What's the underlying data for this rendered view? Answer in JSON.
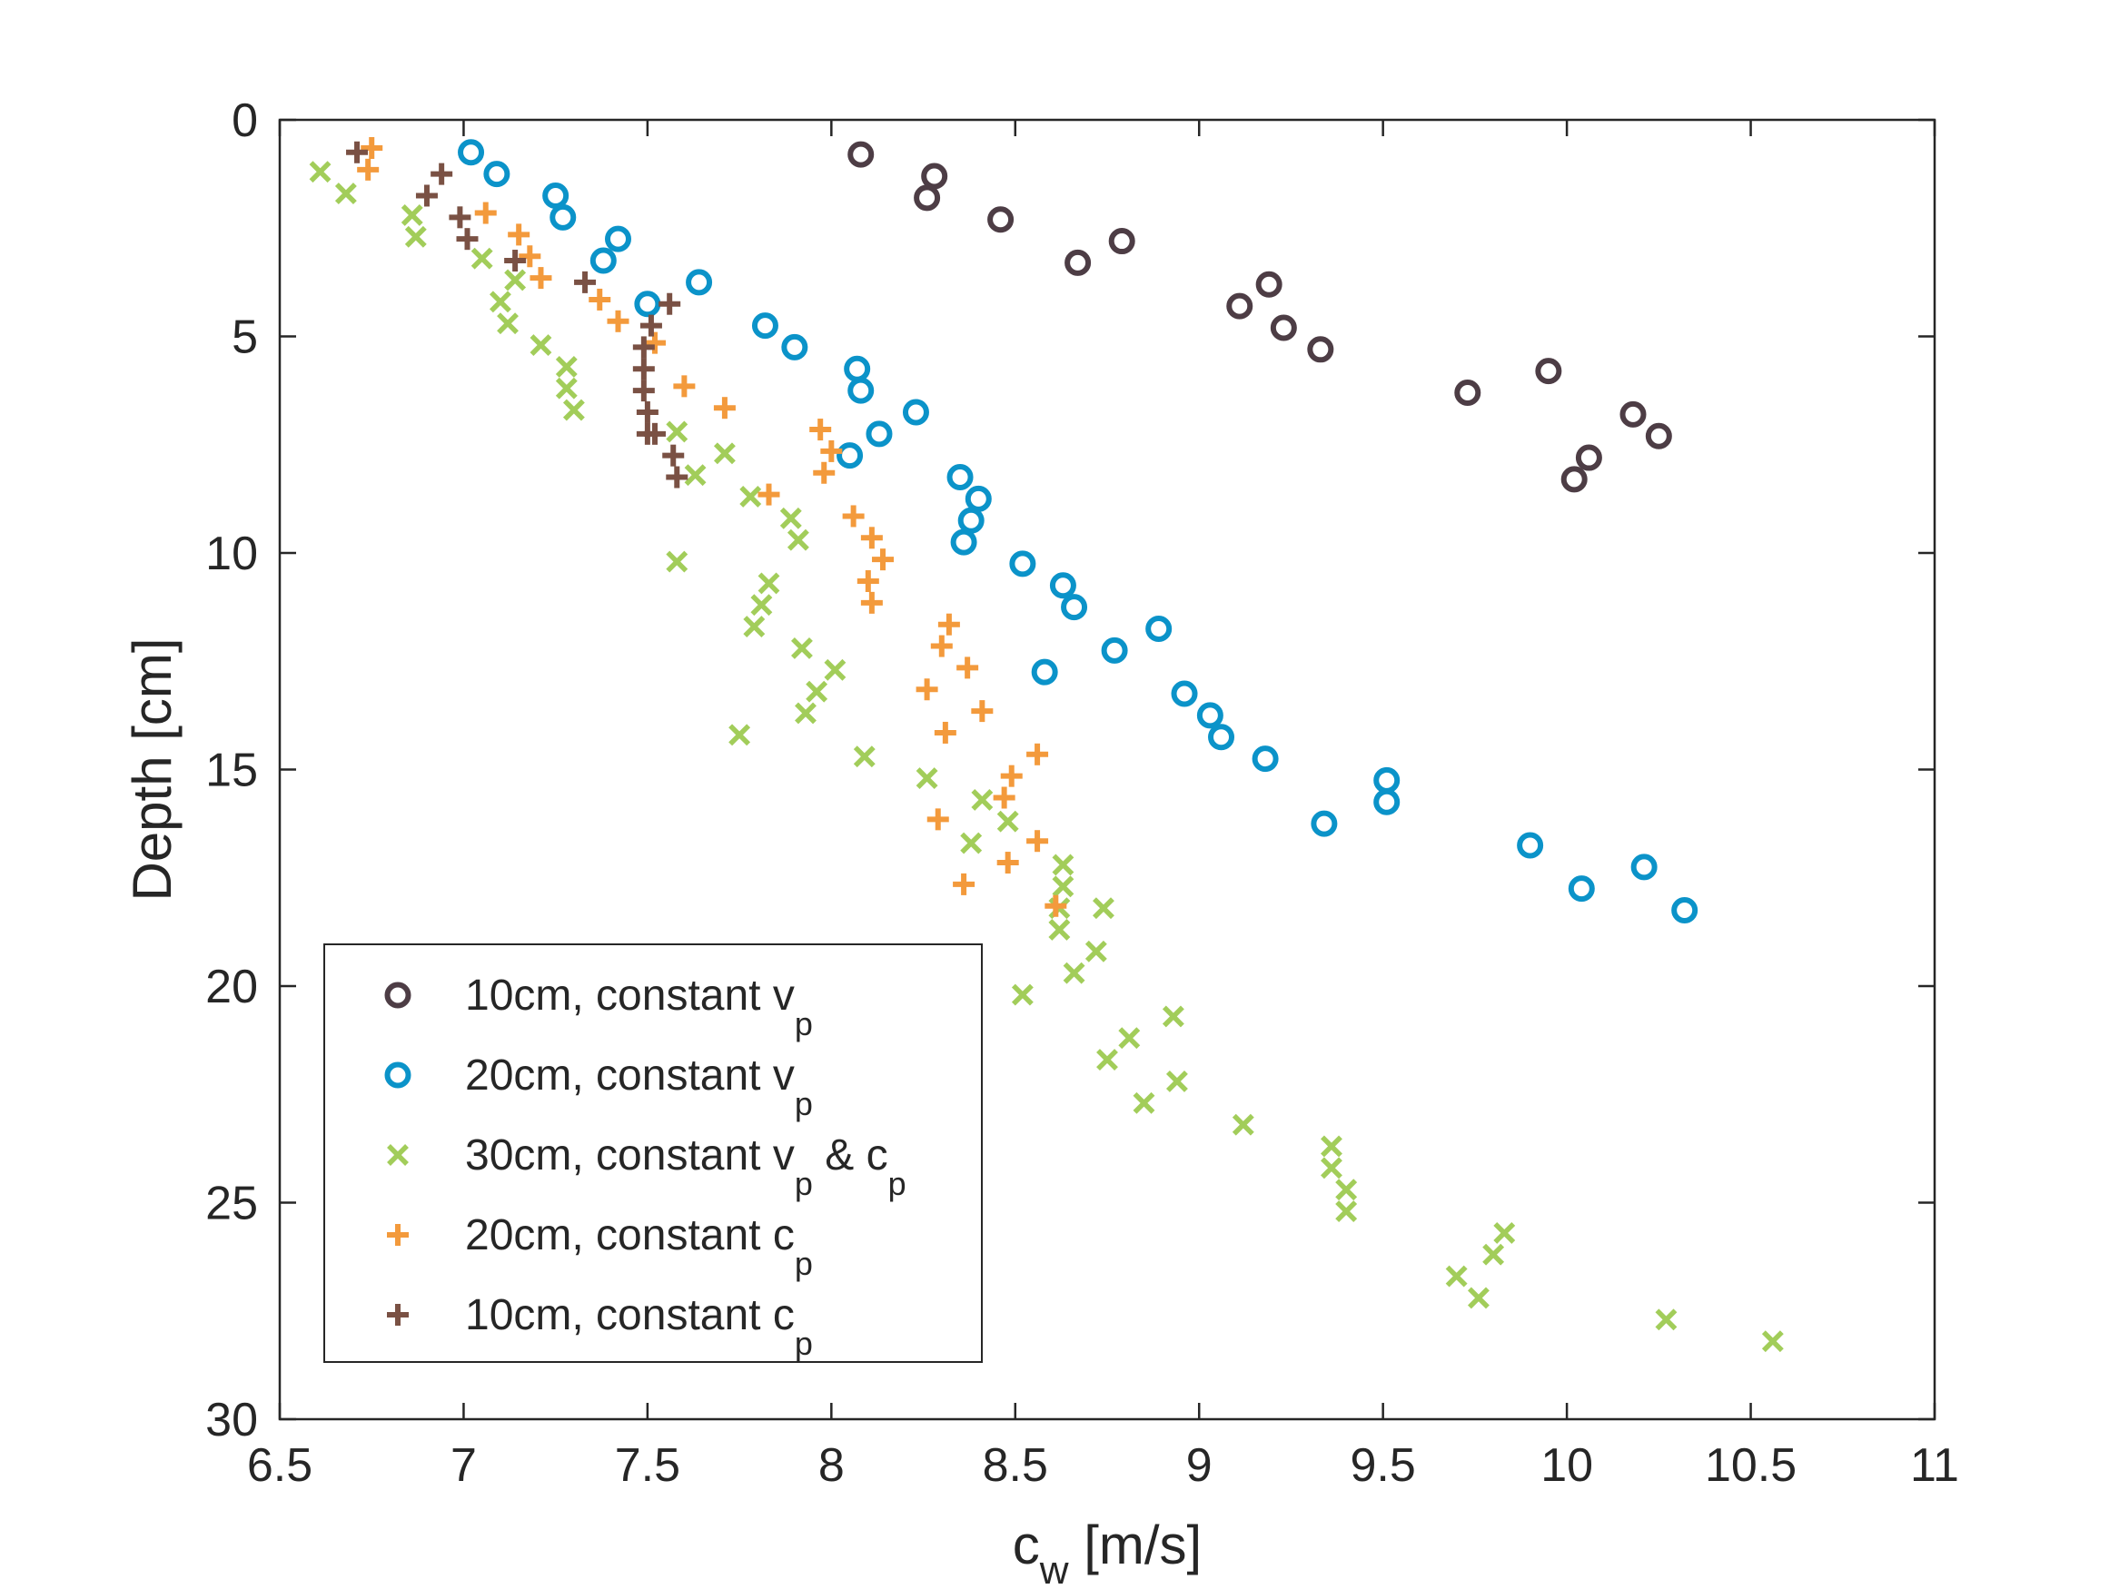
{
  "chart_data": {
    "type": "scatter",
    "title": "",
    "xlabel": "c",
    "xlabel_sub": "w",
    "xlabel_unit": " [m/s]",
    "ylabel": "Depth [cm]",
    "xlim": [
      6.5,
      11
    ],
    "ylim": [
      0,
      30
    ],
    "y_reversed": true,
    "grid": true,
    "legend_position": "bottom-left",
    "x_ticks": [
      6.5,
      7,
      7.5,
      8,
      8.5,
      9,
      9.5,
      10,
      10.5,
      11
    ],
    "x_tick_labels": [
      "6.5",
      "7",
      "7.5",
      "8",
      "8.5",
      "9",
      "9.5",
      "10",
      "10.5",
      "11"
    ],
    "y_ticks": [
      0,
      5,
      10,
      15,
      20,
      25,
      30
    ],
    "y_tick_labels": [
      "0",
      "5",
      "10",
      "15",
      "20",
      "25",
      "30"
    ],
    "series": [
      {
        "name": "10cm, constant v_p",
        "legend_parts": [
          [
            "10cm, constant v",
            ""
          ],
          [
            "p",
            "sub"
          ]
        ],
        "marker": "circle",
        "color": "#4d3d45",
        "x": [
          8.08,
          8.28,
          8.26,
          8.46,
          8.79,
          8.67,
          9.19,
          9.11,
          9.23,
          9.33,
          9.95,
          9.73,
          10.18,
          10.25,
          10.06,
          10.02
        ],
        "y": [
          0.8,
          1.3,
          1.8,
          2.3,
          2.8,
          3.3,
          3.8,
          4.3,
          4.8,
          5.3,
          5.8,
          6.3,
          6.8,
          7.3,
          7.8,
          8.3
        ]
      },
      {
        "name": "20cm, constant v_p",
        "legend_parts": [
          [
            "20cm, constant v",
            ""
          ],
          [
            "p",
            "sub"
          ]
        ],
        "marker": "circle",
        "color": "#0b93c9",
        "x": [
          7.02,
          7.09,
          7.25,
          7.27,
          7.42,
          7.38,
          7.64,
          7.5,
          7.82,
          7.9,
          8.07,
          8.08,
          8.23,
          8.13,
          8.05,
          8.35,
          8.4,
          8.38,
          8.36,
          8.52,
          8.63,
          8.66,
          8.89,
          8.77,
          8.58,
          8.96,
          9.03,
          9.06,
          9.18,
          9.51,
          9.51,
          9.34,
          9.9,
          10.21,
          10.04,
          10.32
        ],
        "y": [
          0.75,
          1.25,
          1.75,
          2.25,
          2.75,
          3.25,
          3.75,
          4.25,
          4.75,
          5.25,
          5.75,
          6.25,
          6.75,
          7.25,
          7.75,
          8.25,
          8.75,
          9.25,
          9.75,
          10.25,
          10.75,
          11.25,
          11.75,
          12.25,
          12.75,
          13.25,
          13.75,
          14.25,
          14.75,
          15.25,
          15.75,
          16.25,
          16.75,
          17.25,
          17.75,
          18.25
        ]
      },
      {
        "name": "30cm, constant v_p & c_p",
        "legend_parts": [
          [
            "30cm, constant v",
            ""
          ],
          [
            "p",
            "sub"
          ],
          [
            " & c",
            ""
          ],
          [
            "p",
            "sub"
          ]
        ],
        "marker": "x",
        "color": "#a2cd5a",
        "x": [
          6.61,
          6.68,
          6.86,
          6.87,
          7.05,
          7.14,
          7.1,
          7.12,
          7.21,
          7.28,
          7.28,
          7.3,
          7.58,
          7.71,
          7.63,
          7.78,
          7.89,
          7.91,
          7.58,
          7.83,
          7.81,
          7.79,
          7.92,
          8.01,
          7.96,
          7.93,
          7.75,
          8.09,
          8.26,
          8.41,
          8.48,
          8.38,
          8.63,
          8.63,
          8.62,
          8.62,
          8.74,
          8.72,
          8.66,
          8.52,
          8.93,
          8.81,
          8.75,
          8.94,
          8.85,
          9.12,
          9.36,
          9.36,
          9.4,
          9.4,
          9.83,
          9.8,
          9.7,
          9.76,
          10.27,
          10.56
        ],
        "y": [
          1.2,
          1.7,
          2.2,
          2.7,
          3.2,
          3.7,
          4.2,
          4.7,
          5.2,
          5.7,
          6.2,
          6.7,
          7.2,
          7.7,
          8.2,
          8.7,
          9.2,
          9.7,
          10.2,
          10.7,
          11.2,
          11.7,
          12.2,
          12.7,
          13.2,
          13.7,
          14.2,
          14.7,
          15.2,
          15.7,
          16.2,
          16.7,
          17.2,
          17.7,
          18.2,
          18.7,
          18.2,
          19.2,
          19.7,
          20.2,
          20.7,
          21.2,
          21.7,
          22.2,
          22.7,
          23.2,
          23.7,
          24.2,
          24.7,
          25.2,
          25.7,
          26.2,
          26.7,
          27.2,
          27.7,
          28.2
        ]
      },
      {
        "name": "20cm, constant c_p",
        "legend_parts": [
          [
            "20cm, constant c",
            ""
          ],
          [
            "p",
            "sub"
          ]
        ],
        "marker": "plus",
        "color": "#f39a3c",
        "x": [
          6.75,
          6.74,
          7.06,
          7.15,
          7.18,
          7.21,
          7.37,
          7.42,
          7.52,
          7.6,
          7.71,
          7.97,
          8.0,
          7.98,
          7.83,
          8.06,
          8.11,
          8.14,
          8.1,
          8.11,
          8.32,
          8.3,
          8.37,
          8.26,
          8.41,
          8.31,
          8.56,
          8.49,
          8.47,
          8.29,
          8.56,
          8.48,
          8.36,
          8.61
        ],
        "y": [
          0.65,
          1.15,
          2.15,
          2.65,
          3.15,
          3.65,
          4.15,
          4.65,
          5.15,
          6.15,
          6.65,
          7.15,
          7.65,
          8.15,
          8.65,
          9.15,
          9.65,
          10.15,
          10.65,
          11.15,
          11.65,
          12.15,
          12.65,
          13.15,
          13.65,
          14.15,
          14.65,
          15.15,
          15.65,
          16.15,
          16.65,
          17.15,
          17.65,
          18.15
        ]
      },
      {
        "name": "10cm, constant c_p",
        "legend_parts": [
          [
            "10cm, constant c",
            ""
          ],
          [
            "p",
            "sub"
          ]
        ],
        "marker": "plus",
        "color": "#7a5144",
        "x": [
          6.71,
          6.94,
          6.9,
          6.99,
          7.01,
          7.14,
          7.33,
          7.56,
          7.51,
          7.49,
          7.49,
          7.49,
          7.5,
          7.5,
          7.52,
          7.57,
          7.58
        ],
        "y": [
          0.75,
          1.25,
          1.75,
          2.25,
          2.75,
          3.25,
          3.75,
          4.25,
          4.75,
          5.25,
          5.75,
          6.25,
          6.75,
          7.25,
          7.25,
          7.75,
          8.25
        ]
      }
    ]
  }
}
